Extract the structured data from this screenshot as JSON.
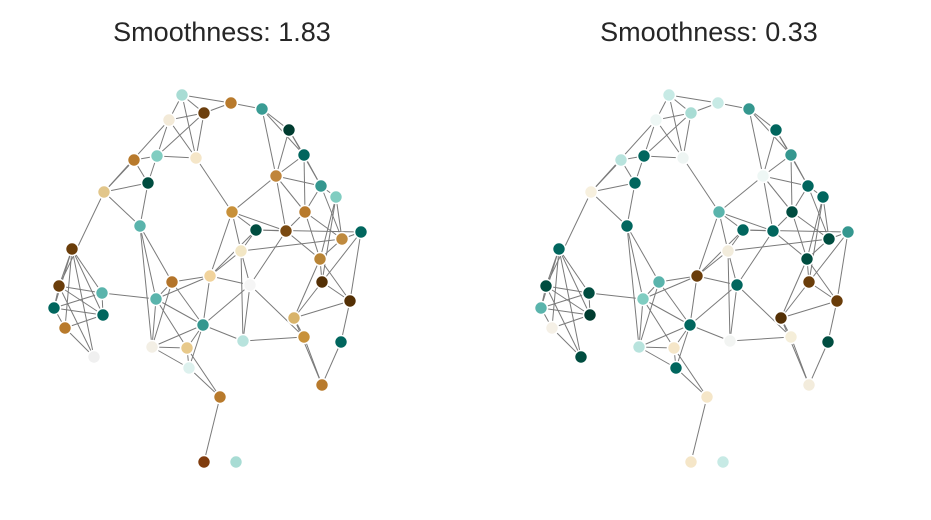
{
  "panels": [
    {
      "title": "Smoothness: 1.83",
      "colors": [
        "#a8dcd4",
        "#b87a2c",
        "#3a9c94",
        "#f3ead8",
        "#6c3f0e",
        "#003c30",
        "#01665e",
        "#b87a2c",
        "#f5e6c8",
        "#c0853a",
        "#004d40",
        "#80cdc1",
        "#e2c68a",
        "#35978f",
        "#80cdc1",
        "#c8913a",
        "#5ab4ac",
        "#b87a2c",
        "#7a4a12",
        "#004d40",
        "#01665e",
        "#bf8a3e",
        "#f2e6c4",
        "#6a3d0a",
        "#6a3d0a",
        "#b3742a",
        "#5ab4ac",
        "#f1d39c",
        "#5ab4ac",
        "#b88436",
        "#f5f5f5",
        "#01665e",
        "#543005",
        "#01665e",
        "#d8b36a",
        "#c8913a",
        "#543005",
        "#35978f",
        "#b8e3dd",
        "#f3efe5",
        "#e8c98a",
        "#b87a2c",
        "#ddf1ee",
        "#b87a2c",
        "#f0f0f0",
        "#01665e",
        "#b87a2c",
        "#803c0e"
      ]
    },
    {
      "title": "Smoothness: 0.33",
      "colors": [
        "#c7eae5",
        "#c7eae5",
        "#35978f",
        "#eef7f5",
        "#a8dcd4",
        "#01665e",
        "#35978f",
        "#b8e3dd",
        "#eef5f3",
        "#eef7f5",
        "#01665e",
        "#01665e",
        "#f7f0de",
        "#01665e",
        "#01665e",
        "#5ab4ac",
        "#01665e",
        "#004d40",
        "#01665e",
        "#01665e",
        "#35978f",
        "#004d40",
        "#f2ecdc",
        "#01665e",
        "#004d40",
        "#5ab4ac",
        "#004d40",
        "#6a3d0a",
        "#80cdc1",
        "#004d40",
        "#01665e",
        "#003c30",
        "#6a3d0a",
        "#5ab4ac",
        "#543005",
        "#f5eed9",
        "#6a3d0a",
        "#01665e",
        "#f2f4f2",
        "#b8e3dd",
        "#f5e6c8",
        "#f5f0e6",
        "#01665e",
        "#f3ecdc",
        "#004d40",
        "#004d40",
        "#f5e6c8",
        "#f5e6c8"
      ]
    }
  ]
}
